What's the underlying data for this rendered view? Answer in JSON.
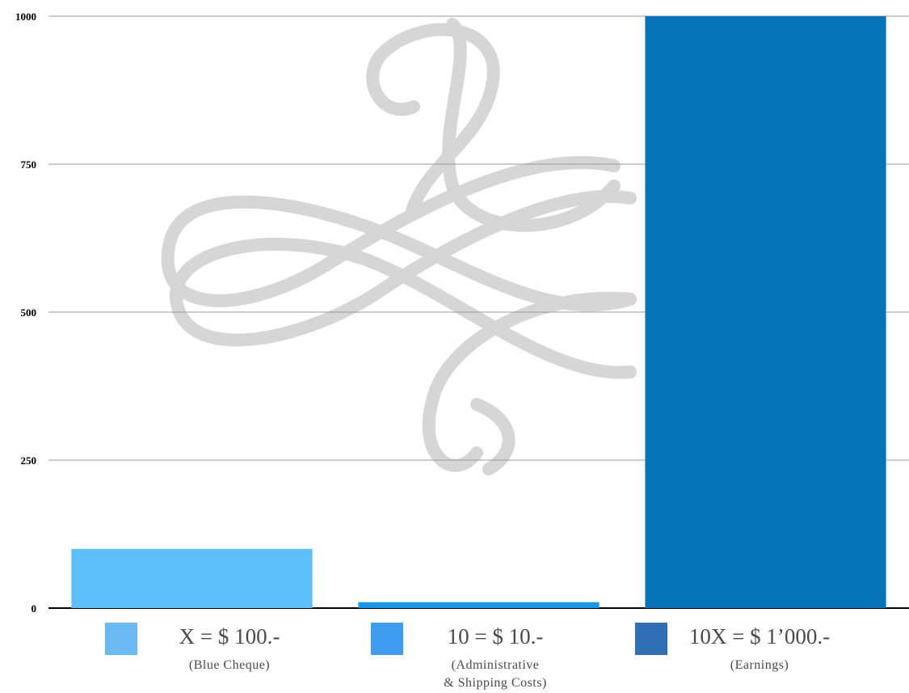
{
  "chart_data": {
    "type": "bar",
    "categories": [
      "X = $ 100.-",
      "10 = $ 10.-",
      "10X = $ 1’000.-"
    ],
    "values": [
      100,
      10,
      1000
    ],
    "ylim": [
      0,
      1000
    ],
    "yticks": [
      "0",
      "250",
      "500",
      "750",
      "1000"
    ],
    "grid": true,
    "legend_position": "bottom",
    "colors": [
      "#5bc0f8",
      "#1599f0",
      "#0574b8"
    ],
    "legend_swatch_colors": [
      "#6cbaf4",
      "#3d9cf0",
      "#2e6fb6"
    ]
  },
  "legend": [
    {
      "title": "X = $ 100.-",
      "subtitle": "(Blue  Cheque)",
      "subtitle2": ""
    },
    {
      "title": "10 = $ 10.-",
      "subtitle": "(Administrative",
      "subtitle2": "& Shipping Costs)"
    },
    {
      "title": "10X = $ 1’000.-",
      "subtitle": "(Earnings)",
      "subtitle2": ""
    }
  ]
}
